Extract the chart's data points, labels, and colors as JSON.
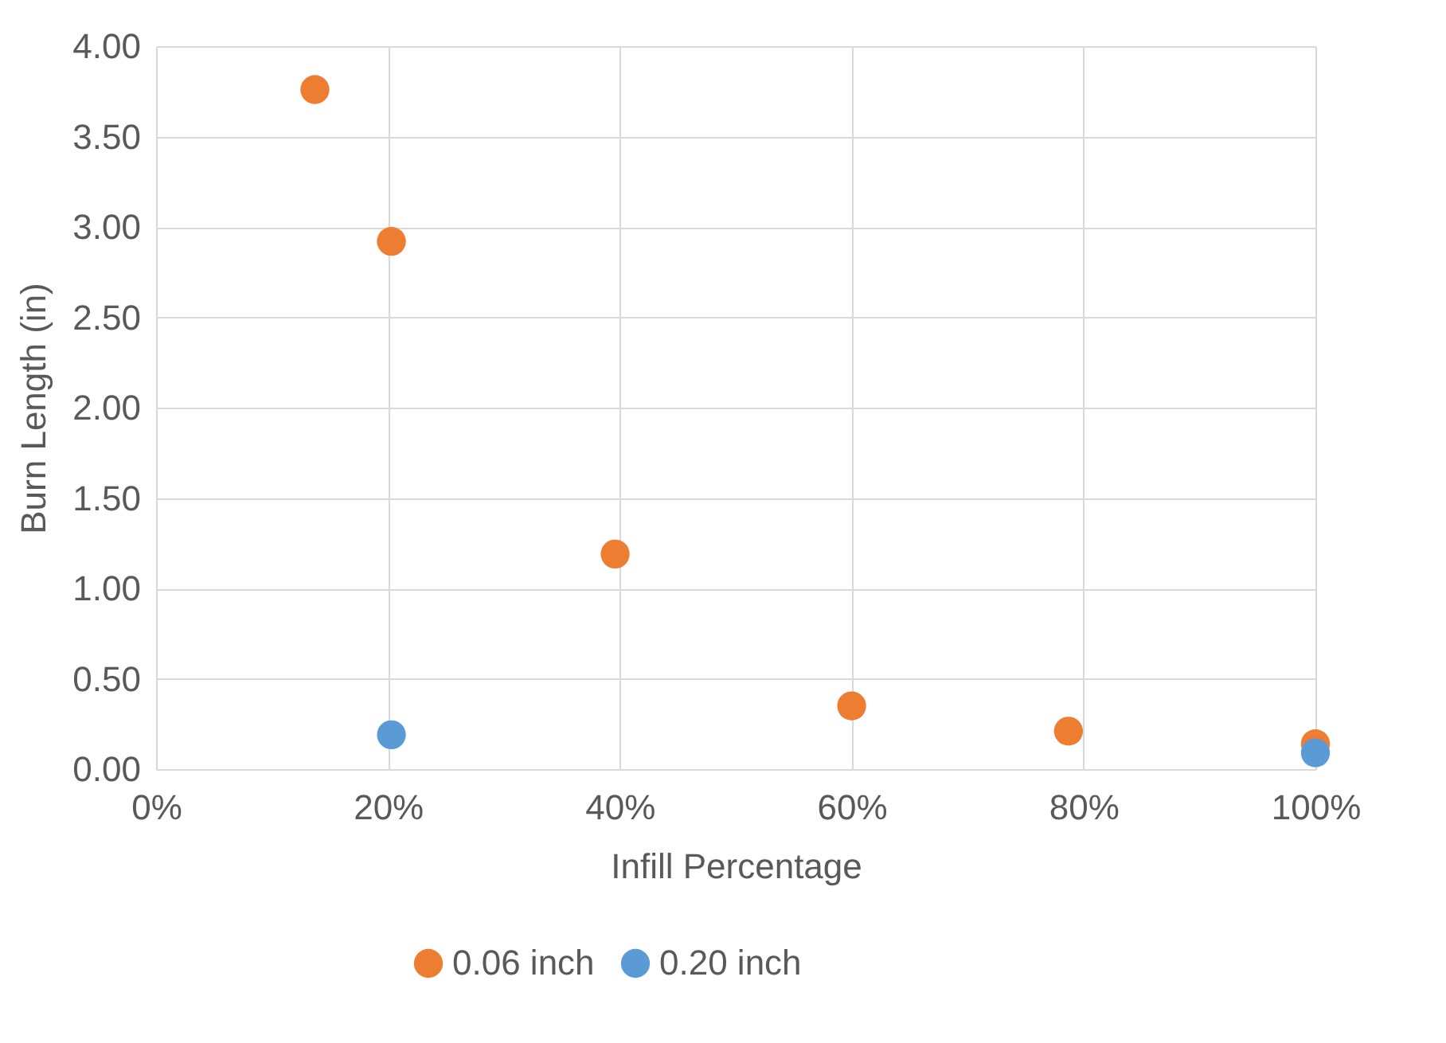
{
  "chart_data": {
    "type": "scatter",
    "xlabel": "Infill Percentage",
    "ylabel": "Burn Length (in)",
    "xlim": [
      0,
      1
    ],
    "xticks": [
      {
        "value": 0,
        "label": "0%"
      },
      {
        "value": 0.2,
        "label": "20%"
      },
      {
        "value": 0.4,
        "label": "40%"
      },
      {
        "value": 0.6,
        "label": "60%"
      },
      {
        "value": 0.8,
        "label": "80%"
      },
      {
        "value": 1,
        "label": "100%"
      }
    ],
    "ylim": [
      0,
      4
    ],
    "yticks": [
      {
        "value": 0,
        "label": "0.00"
      },
      {
        "value": 0.5,
        "label": "0.50"
      },
      {
        "value": 1,
        "label": "1.00"
      },
      {
        "value": 1.5,
        "label": "1.50"
      },
      {
        "value": 2,
        "label": "2.00"
      },
      {
        "value": 2.5,
        "label": "2.50"
      },
      {
        "value": 3,
        "label": "3.00"
      },
      {
        "value": 3.5,
        "label": "3.50"
      },
      {
        "value": 4,
        "label": "4.00"
      }
    ],
    "grid": true,
    "legend": "bottom",
    "marker": "circle",
    "series": [
      {
        "name": "0.06 inch",
        "color": "#ed7d31",
        "x": [
          0.137,
          0.203,
          0.396,
          0.6,
          0.787,
          1.0
        ],
        "values": [
          3.76,
          2.92,
          1.19,
          0.35,
          0.21,
          0.14
        ]
      },
      {
        "name": "0.20 inch",
        "color": "#5b9bd5",
        "x": [
          0.203,
          1.0
        ],
        "values": [
          0.19,
          0.09
        ]
      }
    ]
  }
}
